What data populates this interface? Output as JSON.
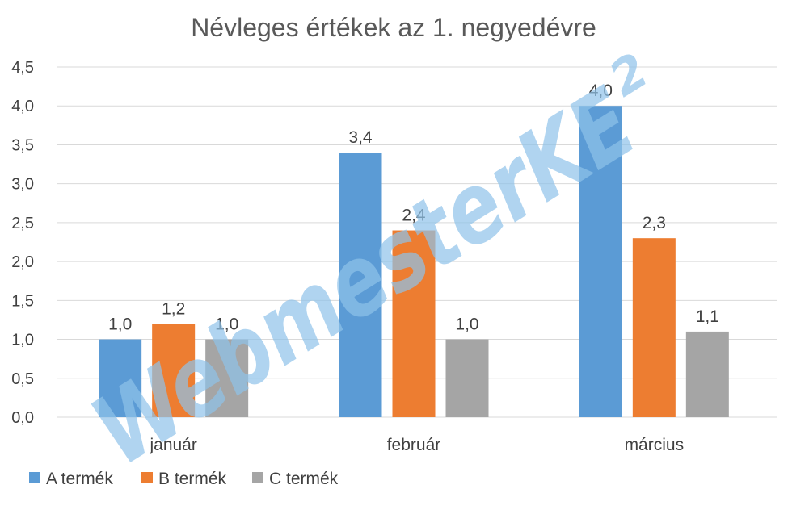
{
  "chart_data": {
    "type": "bar",
    "title": "Névleges értékek az 1. negyedévre",
    "categories": [
      "január",
      "február",
      "március"
    ],
    "series": [
      {
        "name": "A termék",
        "values": [
          1.0,
          3.4,
          4.0
        ],
        "color": "#5b9bd5"
      },
      {
        "name": "B termék",
        "values": [
          1.2,
          2.4,
          2.3
        ],
        "color": "#ed7d31"
      },
      {
        "name": "C termék",
        "values": [
          1.0,
          1.0,
          1.1
        ],
        "color": "#a5a5a5"
      }
    ],
    "data_labels": [
      [
        "1,0",
        "3,4",
        "4,0"
      ],
      [
        "1,2",
        "2,4",
        "2,3"
      ],
      [
        "1,0",
        "1,0",
        "1,1"
      ]
    ],
    "ylim": [
      0,
      4.5
    ],
    "yticks": [
      "0,0",
      "0,5",
      "1,0",
      "1,5",
      "2,0",
      "2,5",
      "3,0",
      "3,5",
      "4,0",
      "4,5"
    ],
    "xlabel": "",
    "ylabel": "",
    "grid": true,
    "legend_position": "bottom-left"
  },
  "watermark": {
    "text": "WebmesterKE",
    "superscript": "2"
  }
}
